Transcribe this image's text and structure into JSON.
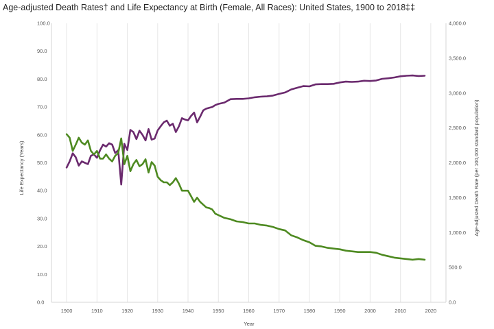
{
  "chart_data": {
    "type": "line",
    "title": "Age-adjusted Death Rates† and Life Expectancy at Birth (Female, All Races): United States, 1900 to 2018‡‡",
    "xlabel": "Year",
    "ylabel_left": "Life Expectancy (Years)",
    "ylabel_right": "Age-adjusted Death Rate (per 100,000 standard population)",
    "xlim": [
      1895,
      2025
    ],
    "ylim_left": [
      0,
      100
    ],
    "ylim_right": [
      0,
      4000
    ],
    "x_ticks": [
      "1900",
      "1910",
      "1920",
      "1930",
      "1940",
      "1950",
      "1960",
      "1970",
      "1980",
      "1990",
      "2000",
      "2010",
      "2020"
    ],
    "y_left_ticks": [
      "0.0",
      "10.0",
      "20.0",
      "30.0",
      "40.0",
      "50.0",
      "60.0",
      "70.0",
      "80.0",
      "90.0",
      "100.0"
    ],
    "y_right_ticks": [
      "0.0",
      "500.0",
      "1,000.0",
      "1,500.0",
      "2,000.0",
      "2,500.0",
      "3,000.0",
      "3,500.0",
      "4,000.0"
    ],
    "grid": "vertical",
    "colors": {
      "life_expectancy": "#6b2a6e",
      "death_rate": "#4e8a21",
      "grid": "#e6e6e6"
    },
    "series": [
      {
        "axis": "left",
        "x": [
          1900,
          1901,
          1902,
          1903,
          1904,
          1905,
          1906,
          1907,
          1908,
          1909,
          1910,
          1911,
          1912,
          1913,
          1914,
          1915,
          1916,
          1917,
          1918,
          1919,
          1920,
          1921,
          1922,
          1923,
          1924,
          1925,
          1926,
          1927,
          1928,
          1929,
          1930,
          1931,
          1932,
          1933,
          1934,
          1935,
          1936,
          1937,
          1938,
          1939,
          1940,
          1941,
          1942,
          1943,
          1944,
          1945,
          1946,
          1947,
          1948,
          1949,
          1950,
          1952,
          1954,
          1956,
          1958,
          1960,
          1962,
          1964,
          1966,
          1968,
          1970,
          1972,
          1974,
          1976,
          1978,
          1980,
          1982,
          1984,
          1986,
          1988,
          1990,
          1992,
          1994,
          1996,
          1998,
          2000,
          2002,
          2004,
          2006,
          2008,
          2010,
          2012,
          2014,
          2016,
          2018
        ],
        "values": [
          48.3,
          50.5,
          53.4,
          52.0,
          49.0,
          50.5,
          50.0,
          49.5,
          52.5,
          53.0,
          51.8,
          54.5,
          56.5,
          55.8,
          57.0,
          56.5,
          53.5,
          54.5,
          42.2,
          56.8,
          54.6,
          61.8,
          61.0,
          58.5,
          61.5,
          60.0,
          58.0,
          62.1,
          58.3,
          58.7,
          61.6,
          63.1,
          64.5,
          65.1,
          63.3,
          64.0,
          61.0,
          63.1,
          66.0,
          65.5,
          65.2,
          66.8,
          68.0,
          64.5,
          66.5,
          68.8,
          69.4,
          69.7,
          70.0,
          70.7,
          71.1,
          71.6,
          72.8,
          72.9,
          72.9,
          73.1,
          73.5,
          73.7,
          73.8,
          74.1,
          74.7,
          75.2,
          76.3,
          76.9,
          77.5,
          77.4,
          78.1,
          78.2,
          78.2,
          78.3,
          78.8,
          79.1,
          79.0,
          79.1,
          79.4,
          79.3,
          79.5,
          80.1,
          80.3,
          80.6,
          81.0,
          81.2,
          81.3,
          81.1,
          81.2
        ]
      },
      {
        "axis": "right",
        "x": [
          1900,
          1901,
          1902,
          1903,
          1904,
          1905,
          1906,
          1907,
          1908,
          1909,
          1910,
          1911,
          1912,
          1913,
          1914,
          1915,
          1916,
          1917,
          1918,
          1919,
          1920,
          1921,
          1922,
          1923,
          1924,
          1925,
          1926,
          1927,
          1928,
          1929,
          1930,
          1931,
          1932,
          1933,
          1934,
          1935,
          1936,
          1937,
          1938,
          1939,
          1940,
          1941,
          1942,
          1943,
          1944,
          1945,
          1946,
          1947,
          1948,
          1949,
          1950,
          1952,
          1954,
          1956,
          1958,
          1960,
          1962,
          1964,
          1966,
          1968,
          1970,
          1972,
          1974,
          1976,
          1978,
          1980,
          1982,
          1984,
          1986,
          1988,
          1990,
          1992,
          1994,
          1996,
          1998,
          2000,
          2002,
          2004,
          2006,
          2008,
          2010,
          2012,
          2014,
          2016,
          2018
        ],
        "values": [
          2410,
          2360,
          2170,
          2260,
          2360,
          2290,
          2260,
          2320,
          2170,
          2120,
          2170,
          2060,
          2060,
          2120,
          2060,
          2020,
          2100,
          2140,
          2350,
          1980,
          2100,
          1880,
          1980,
          2040,
          1950,
          1980,
          2050,
          1860,
          2010,
          1960,
          1800,
          1750,
          1720,
          1720,
          1680,
          1720,
          1780,
          1700,
          1600,
          1600,
          1600,
          1520,
          1440,
          1500,
          1440,
          1400,
          1360,
          1350,
          1330,
          1270,
          1250,
          1210,
          1190,
          1160,
          1150,
          1130,
          1130,
          1110,
          1100,
          1080,
          1050,
          1030,
          960,
          930,
          890,
          860,
          810,
          800,
          780,
          770,
          760,
          740,
          730,
          720,
          720,
          720,
          710,
          680,
          660,
          640,
          630,
          620,
          610,
          620,
          610
        ]
      }
    ]
  }
}
